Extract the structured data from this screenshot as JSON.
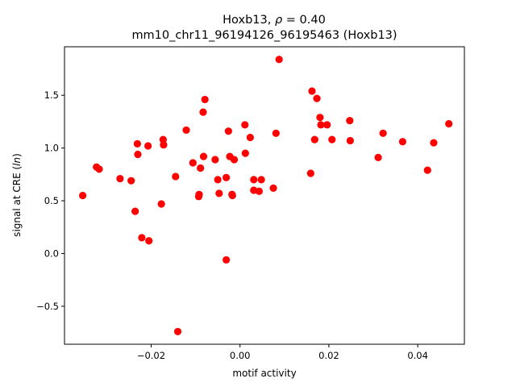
{
  "chart_data": {
    "type": "scatter",
    "title_line1_prefix": "Hoxb13, ",
    "title_rho_symbol": "ρ",
    "title_rho_suffix": " = 0.40",
    "title_line2": "mm10_chr11_96194126_96195463 (Hoxb13)",
    "xlabel": "motif activity",
    "ylabel_prefix": "signal at CRE (",
    "ylabel_italic": "ln",
    "ylabel_suffix": ")",
    "xlim": [
      -0.0395,
      0.0505
    ],
    "ylim": [
      -0.86,
      1.96
    ],
    "xticks": [
      -0.02,
      0.0,
      0.02,
      0.04
    ],
    "xtick_labels": [
      "−0.02",
      "0.00",
      "0.02",
      "0.04"
    ],
    "yticks": [
      -0.5,
      0.0,
      0.5,
      1.0,
      1.5
    ],
    "ytick_labels": [
      "−0.5",
      "0.0",
      "0.5",
      "1.0",
      "1.5"
    ],
    "point_color": "#ff0000",
    "grid": false,
    "points": [
      {
        "x": -0.0354,
        "y": 0.55
      },
      {
        "x": -0.0323,
        "y": 0.82
      },
      {
        "x": -0.0317,
        "y": 0.8
      },
      {
        "x": -0.027,
        "y": 0.71
      },
      {
        "x": -0.0245,
        "y": 0.69
      },
      {
        "x": -0.0236,
        "y": 0.4
      },
      {
        "x": -0.0231,
        "y": 1.04
      },
      {
        "x": -0.023,
        "y": 0.94
      },
      {
        "x": -0.0221,
        "y": 0.15
      },
      {
        "x": -0.0207,
        "y": 1.02
      },
      {
        "x": -0.0205,
        "y": 0.12
      },
      {
        "x": -0.0177,
        "y": 0.47
      },
      {
        "x": -0.0173,
        "y": 1.08
      },
      {
        "x": -0.0172,
        "y": 1.03
      },
      {
        "x": -0.0145,
        "y": 0.73
      },
      {
        "x": -0.014,
        "y": -0.74
      },
      {
        "x": -0.0121,
        "y": 1.17
      },
      {
        "x": -0.0106,
        "y": 0.86
      },
      {
        "x": -0.0093,
        "y": 0.54
      },
      {
        "x": -0.0092,
        "y": 0.56
      },
      {
        "x": -0.0089,
        "y": 0.81
      },
      {
        "x": -0.0083,
        "y": 1.34
      },
      {
        "x": -0.0082,
        "y": 0.92
      },
      {
        "x": -0.0079,
        "y": 1.46
      },
      {
        "x": -0.0056,
        "y": 0.89
      },
      {
        "x": -0.005,
        "y": 0.7
      },
      {
        "x": -0.0047,
        "y": 0.57
      },
      {
        "x": -0.0031,
        "y": 0.72
      },
      {
        "x": -0.0031,
        "y": -0.06
      },
      {
        "x": -0.0026,
        "y": 1.16
      },
      {
        "x": -0.0023,
        "y": 0.92
      },
      {
        "x": -0.0018,
        "y": 0.56
      },
      {
        "x": -0.0017,
        "y": 0.55
      },
      {
        "x": -0.0013,
        "y": 0.89
      },
      {
        "x": 0.0011,
        "y": 1.22
      },
      {
        "x": 0.0012,
        "y": 0.95
      },
      {
        "x": 0.0023,
        "y": 1.1
      },
      {
        "x": 0.0031,
        "y": 0.6
      },
      {
        "x": 0.0031,
        "y": 0.7
      },
      {
        "x": 0.0043,
        "y": 0.59
      },
      {
        "x": 0.0048,
        "y": 0.7
      },
      {
        "x": 0.0075,
        "y": 0.62
      },
      {
        "x": 0.0081,
        "y": 1.14
      },
      {
        "x": 0.0088,
        "y": 1.84
      },
      {
        "x": 0.0159,
        "y": 0.76
      },
      {
        "x": 0.0162,
        "y": 1.54
      },
      {
        "x": 0.0168,
        "y": 1.08
      },
      {
        "x": 0.0173,
        "y": 1.47
      },
      {
        "x": 0.018,
        "y": 1.29
      },
      {
        "x": 0.0182,
        "y": 1.22
      },
      {
        "x": 0.0196,
        "y": 1.22
      },
      {
        "x": 0.0207,
        "y": 1.08
      },
      {
        "x": 0.0247,
        "y": 1.26
      },
      {
        "x": 0.0248,
        "y": 1.07
      },
      {
        "x": 0.0311,
        "y": 0.91
      },
      {
        "x": 0.0322,
        "y": 1.14
      },
      {
        "x": 0.0366,
        "y": 1.06
      },
      {
        "x": 0.0422,
        "y": 0.79
      },
      {
        "x": 0.0436,
        "y": 1.05
      },
      {
        "x": 0.047,
        "y": 1.23
      }
    ]
  }
}
